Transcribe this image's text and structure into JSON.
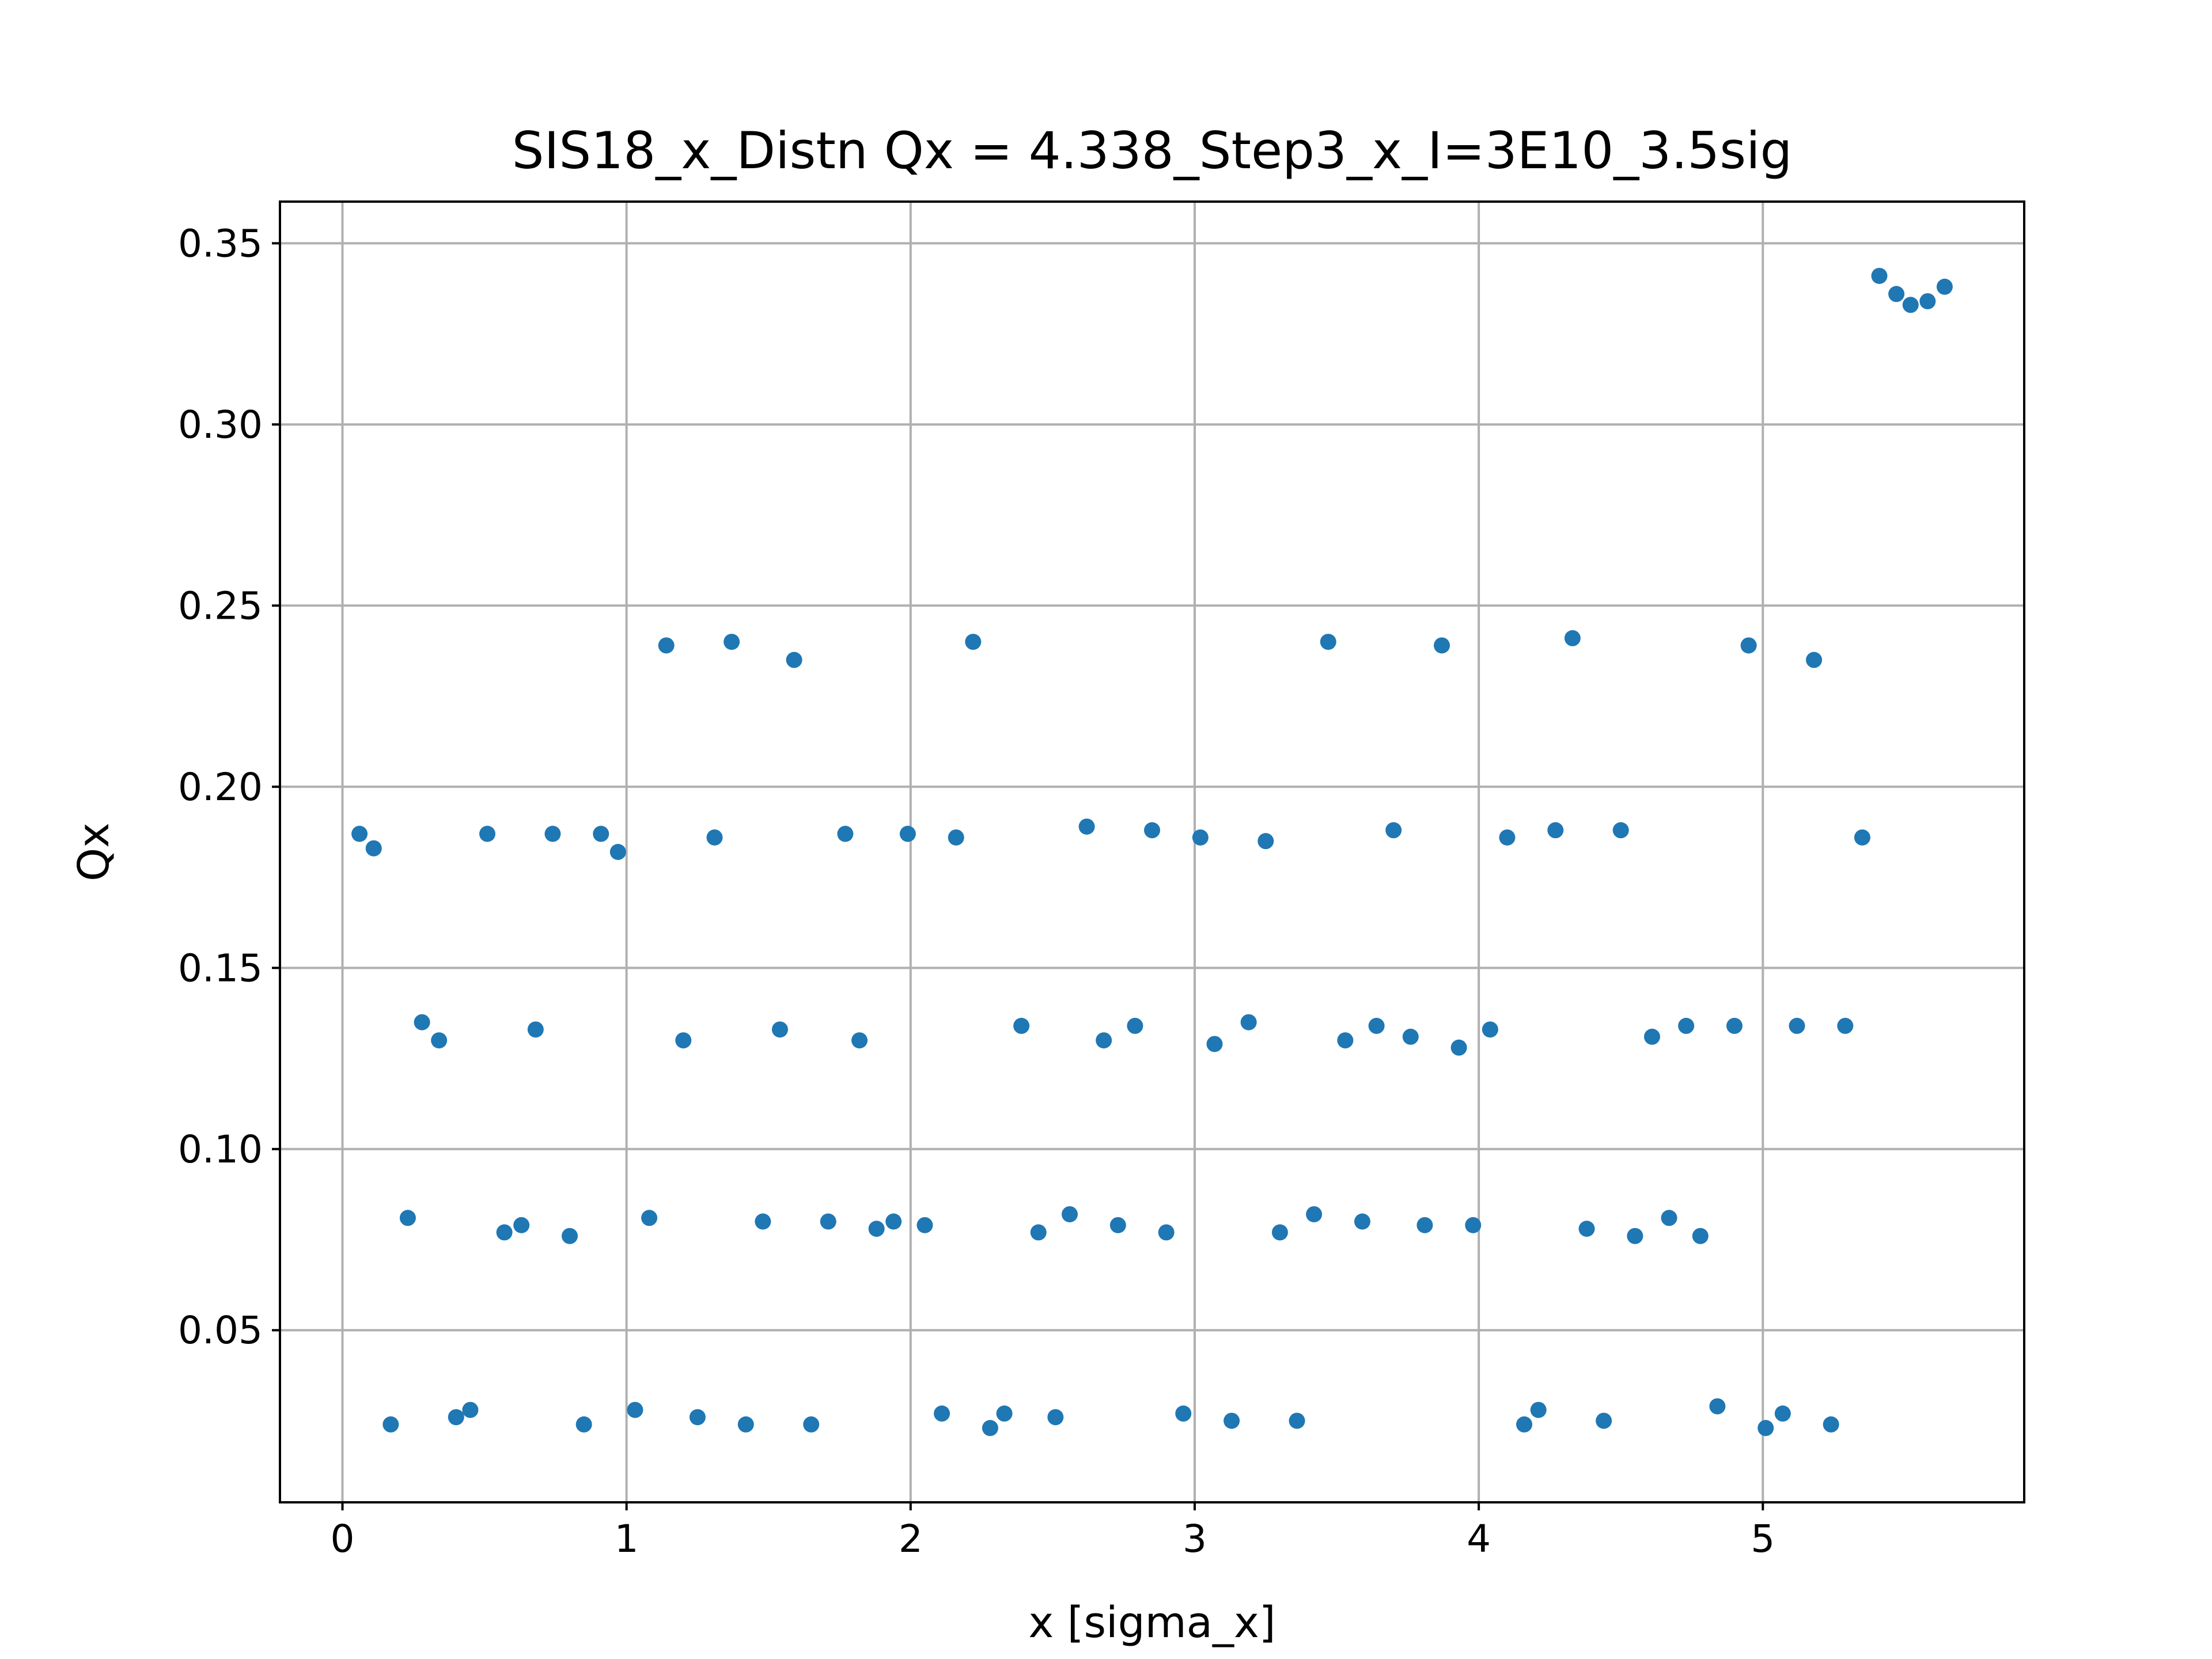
{
  "chart_data": {
    "type": "scatter",
    "title": "SIS18_x_Distn Qx = 4.338_Step3_x_I=3E10_3.5sig",
    "xlabel": "x [sigma_x]",
    "ylabel": "Qx",
    "xlim": [
      -0.22,
      5.92
    ],
    "ylim": [
      0.0025,
      0.3615
    ],
    "xticks": [
      0,
      1,
      2,
      3,
      4,
      5
    ],
    "xtick_labels": [
      "0",
      "1",
      "2",
      "3",
      "4",
      "5"
    ],
    "yticks": [
      0.05,
      0.1,
      0.15,
      0.2,
      0.25,
      0.3,
      0.35
    ],
    "ytick_labels": [
      "0.05",
      "0.10",
      "0.15",
      "0.20",
      "0.25",
      "0.30",
      "0.35"
    ],
    "grid": true,
    "marker_color": "#1f77b4",
    "series": [
      {
        "x": [
          0.06,
          0.11,
          0.17,
          0.23,
          0.28,
          0.34,
          0.4,
          0.45,
          0.51,
          0.57,
          0.63,
          0.68,
          0.74,
          0.8,
          0.85,
          0.91,
          0.97,
          1.03,
          1.08,
          1.14,
          1.2,
          1.25,
          1.31,
          1.37,
          1.42,
          1.48,
          1.54,
          1.59,
          1.65,
          1.71,
          1.77,
          1.82,
          1.88,
          1.94,
          1.99,
          2.05,
          2.11,
          2.16,
          2.22,
          2.28,
          2.33,
          2.39,
          2.45,
          2.51,
          2.56,
          2.62,
          2.68,
          2.73,
          2.79,
          2.85,
          2.9,
          2.96,
          3.02,
          3.07,
          3.13,
          3.19,
          3.25,
          3.3,
          3.36,
          3.42,
          3.47,
          3.53,
          3.59,
          3.64,
          3.7,
          3.76,
          3.81,
          3.87,
          3.93,
          3.98,
          4.04,
          4.1,
          4.16,
          4.21,
          4.27,
          4.33,
          4.38,
          4.44,
          4.5,
          4.55,
          4.61,
          4.67,
          4.73,
          4.78,
          4.84,
          4.9,
          4.95,
          5.01,
          5.07,
          5.12,
          5.18,
          5.24,
          5.29,
          5.35,
          5.41,
          5.47,
          5.52,
          5.58,
          5.64
        ],
        "y": [
          0.187,
          0.183,
          0.024,
          0.081,
          0.135,
          0.13,
          0.026,
          0.028,
          0.187,
          0.077,
          0.079,
          0.133,
          0.187,
          0.076,
          0.024,
          0.187,
          0.182,
          0.028,
          0.081,
          0.239,
          0.13,
          0.026,
          0.186,
          0.24,
          0.024,
          0.08,
          0.133,
          0.235,
          0.024,
          0.08,
          0.187,
          0.13,
          0.078,
          0.08,
          0.187,
          0.079,
          0.027,
          0.186,
          0.24,
          0.023,
          0.027,
          0.134,
          0.077,
          0.026,
          0.082,
          0.189,
          0.13,
          0.079,
          0.134,
          0.188,
          0.077,
          0.027,
          0.186,
          0.129,
          0.025,
          0.135,
          0.185,
          0.077,
          0.025,
          0.082,
          0.24,
          0.13,
          0.08,
          0.134,
          0.188,
          0.131,
          0.079,
          0.239,
          0.128,
          0.079,
          0.133,
          0.186,
          0.024,
          0.028,
          0.188,
          0.241,
          0.078,
          0.025,
          0.188,
          0.076,
          0.131,
          0.081,
          0.134,
          0.076,
          0.029,
          0.134,
          0.239,
          0.023,
          0.027,
          0.134,
          0.235,
          0.024,
          0.134,
          0.186,
          0.341,
          0.336,
          0.333,
          0.334,
          0.338
        ]
      }
    ]
  }
}
